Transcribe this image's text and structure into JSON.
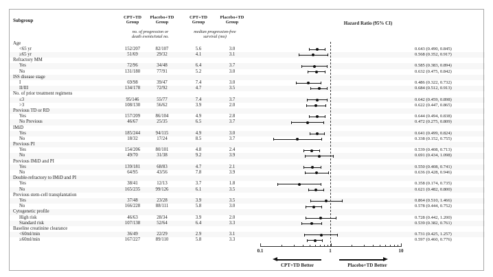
{
  "header": {
    "subgroup": "Subgroup",
    "columns": [
      {
        "line1": "CPT+TD",
        "line2": "Group"
      },
      {
        "line1": "Placebo+TD",
        "line2": "Group"
      },
      {
        "line1": "CPT+TD",
        "line2": "Group"
      },
      {
        "line1": "Placebo+TD",
        "line2": "Group"
      }
    ],
    "subheaders": [
      {
        "line1": "no. of progression or",
        "line2": "death events/total no."
      },
      {
        "line1": "median progression-free",
        "line2": "survival (mo)"
      }
    ],
    "hazard_ratio": "Hazard Ratio (95% CI)"
  },
  "axis": {
    "ticks": [
      "0.1",
      "1",
      "10"
    ],
    "tick_values": [
      0.1,
      1,
      10
    ],
    "minor_tick_values": [
      0.2,
      0.3,
      0.4,
      0.5,
      0.6,
      0.7,
      0.8,
      0.9,
      2,
      3,
      4,
      5,
      6,
      7,
      8,
      9
    ],
    "reference_value": 1,
    "left_label": "CPT+TD Better",
    "right_label": "Placebo+TD Better"
  },
  "rows": [
    {
      "label": "Age",
      "indent": false
    },
    {
      "label": "<65 yr",
      "indent": true,
      "events_cpt": "152/207",
      "events_placebo": "82/107",
      "pfs_cpt": "5.6",
      "pfs_placebo": "3.0",
      "hr": 0.643,
      "ci_low": 0.49,
      "ci_high": 0.845,
      "hr_text": "0.643 (0.490, 0.845)"
    },
    {
      "label": "≥65 yr",
      "indent": true,
      "events_cpt": "51/69",
      "events_placebo": "29/32",
      "pfs_cpt": "4.1",
      "pfs_placebo": "3.1",
      "hr": 0.568,
      "ci_low": 0.352,
      "ci_high": 0.917,
      "hr_text": "0.568 (0.352, 0.917)"
    },
    {
      "label": "Refractory MM",
      "indent": false
    },
    {
      "label": "Yes",
      "indent": true,
      "events_cpt": "72/96",
      "events_placebo": "34/48",
      "pfs_cpt": "6.4",
      "pfs_placebo": "3.7",
      "hr": 0.585,
      "ci_low": 0.383,
      "ci_high": 0.894,
      "hr_text": "0.585 (0.383, 0.894)"
    },
    {
      "label": "No",
      "indent": true,
      "events_cpt": "131/180",
      "events_placebo": "77/91",
      "pfs_cpt": "5.2",
      "pfs_placebo": "3.0",
      "hr": 0.632,
      "ci_low": 0.475,
      "ci_high": 0.842,
      "hr_text": "0.632 (0.475, 0.842)"
    },
    {
      "label": "ISS disease stage",
      "indent": false
    },
    {
      "label": "I",
      "indent": true,
      "events_cpt": "69/98",
      "events_placebo": "39/47",
      "pfs_cpt": "7.4",
      "pfs_placebo": "3.0",
      "hr": 0.486,
      "ci_low": 0.322,
      "ci_high": 0.732,
      "hr_text": "0.486 (0.322, 0.732)"
    },
    {
      "label": "II/III",
      "indent": true,
      "events_cpt": "134/178",
      "events_placebo": "72/92",
      "pfs_cpt": "4.7",
      "pfs_placebo": "3.5",
      "hr": 0.684,
      "ci_low": 0.512,
      "ci_high": 0.913,
      "hr_text": "0.684 (0.512, 0.913)"
    },
    {
      "label": "No. of prior treatment regimens",
      "indent": false
    },
    {
      "label": "≤3",
      "indent": true,
      "events_cpt": "95/146",
      "events_placebo": "55/77",
      "pfs_cpt": "7.4",
      "pfs_placebo": "3.7",
      "hr": 0.642,
      "ci_low": 0.459,
      "ci_high": 0.898,
      "hr_text": "0.642 (0.459, 0.898)"
    },
    {
      "label": ">3",
      "indent": true,
      "events_cpt": "108/130",
      "events_placebo": "56/62",
      "pfs_cpt": "3.9",
      "pfs_placebo": "2.0",
      "hr": 0.622,
      "ci_low": 0.447,
      "ci_high": 0.865,
      "hr_text": "0.622 (0.447, 0.865)"
    },
    {
      "label": "Previous TD or RD",
      "indent": false
    },
    {
      "label": "Yes",
      "indent": true,
      "events_cpt": "157/209",
      "events_placebo": "86/104",
      "pfs_cpt": "4.9",
      "pfs_placebo": "2.8",
      "hr": 0.644,
      "ci_low": 0.494,
      "ci_high": 0.838,
      "hr_text": "0.644 (0.494, 0.838)"
    },
    {
      "label": "No Previous",
      "indent": true,
      "events_cpt": "46/67",
      "events_placebo": "25/35",
      "pfs_cpt": "6.5",
      "pfs_placebo": "3.7",
      "hr": 0.472,
      "ci_low": 0.275,
      "ci_high": 0.809,
      "hr_text": "0.472 (0.275, 0.809)"
    },
    {
      "label": "IMiD",
      "indent": false
    },
    {
      "label": "Yes",
      "indent": true,
      "events_cpt": "185/244",
      "events_placebo": "94/115",
      "pfs_cpt": "4.9",
      "pfs_placebo": "3.0",
      "hr": 0.641,
      "ci_low": 0.499,
      "ci_high": 0.824,
      "hr_text": "0.641 (0.499, 0.824)"
    },
    {
      "label": "No",
      "indent": true,
      "events_cpt": "18/32",
      "events_placebo": "17/24",
      "pfs_cpt": "8.5",
      "pfs_placebo": "3.7",
      "hr": 0.338,
      "ci_low": 0.152,
      "ci_high": 0.755,
      "hr_text": "0.338 (0.152, 0.755)"
    },
    {
      "label": "Previous PI",
      "indent": false
    },
    {
      "label": "Yes",
      "indent": true,
      "events_cpt": "154/206",
      "events_placebo": "80/101",
      "pfs_cpt": "4.8",
      "pfs_placebo": "2.4",
      "hr": 0.539,
      "ci_low": 0.408,
      "ci_high": 0.713,
      "hr_text": "0.539 (0.408, 0.713)"
    },
    {
      "label": "No",
      "indent": true,
      "events_cpt": "49/70",
      "events_placebo": "31/38",
      "pfs_cpt": "9.2",
      "pfs_placebo": "3.9",
      "hr": 0.691,
      "ci_low": 0.434,
      "ci_high": 1.098,
      "hr_text": "0.691 (0.434, 1.098)"
    },
    {
      "label": "Previous IMiD and PI",
      "indent": false
    },
    {
      "label": "Yes",
      "indent": true,
      "events_cpt": "139/181",
      "events_placebo": "68/83",
      "pfs_cpt": "4.7",
      "pfs_placebo": "2.1",
      "hr": 0.55,
      "ci_low": 0.408,
      "ci_high": 0.741,
      "hr_text": "0.550 (0.408, 0.741)"
    },
    {
      "label": "No",
      "indent": true,
      "events_cpt": "64/95",
      "events_placebo": "43/56",
      "pfs_cpt": "7.8",
      "pfs_placebo": "3.9",
      "hr": 0.636,
      "ci_low": 0.428,
      "ci_high": 0.946,
      "hr_text": "0.636 (0.428, 0.946)"
    },
    {
      "label": "Double-refractory to IMiD and PI",
      "indent": false
    },
    {
      "label": "Yes",
      "indent": true,
      "events_cpt": "38/41",
      "events_placebo": "12/13",
      "pfs_cpt": "3.7",
      "pfs_placebo": "1.8",
      "hr": 0.358,
      "ci_low": 0.174,
      "ci_high": 0.735,
      "hr_text": "0.358 (0.174, 0.735)"
    },
    {
      "label": "No",
      "indent": true,
      "events_cpt": "165/235",
      "events_placebo": "99/126",
      "pfs_cpt": "6.1",
      "pfs_placebo": "3.5",
      "hr": 0.621,
      "ci_low": 0.482,
      "ci_high": 0.8,
      "hr_text": "0.621 (0.482, 0.800)"
    },
    {
      "label": "Previous stem-cell transplantation",
      "indent": false
    },
    {
      "label": "Yes",
      "indent": true,
      "events_cpt": "37/48",
      "events_placebo": "23/28",
      "pfs_cpt": "3.9",
      "pfs_placebo": "3.5",
      "hr": 0.864,
      "ci_low": 0.51,
      "ci_high": 1.466,
      "hr_text": "0.864 (0.510, 1.466)"
    },
    {
      "label": "No",
      "indent": true,
      "events_cpt": "166/228",
      "events_placebo": "88/111",
      "pfs_cpt": "5.8",
      "pfs_placebo": "3.0",
      "hr": 0.578,
      "ci_low": 0.444,
      "ci_high": 0.752,
      "hr_text": "0.578 (0.444, 0.752)"
    },
    {
      "label": "Cytogenetic profile",
      "indent": false
    },
    {
      "label": "High risk",
      "indent": true,
      "events_cpt": "46/63",
      "events_placebo": "28/34",
      "pfs_cpt": "3.9",
      "pfs_placebo": "2.0",
      "hr": 0.728,
      "ci_low": 0.442,
      "ci_high": 1.2,
      "hr_text": "0.728 (0.442, 1.200)"
    },
    {
      "label": "Standard risk",
      "indent": true,
      "events_cpt": "107/138",
      "events_placebo": "52/64",
      "pfs_cpt": "6.4",
      "pfs_placebo": "3.3",
      "hr": 0.539,
      "ci_low": 0.382,
      "ci_high": 0.761,
      "hr_text": "0.539 (0.382, 0.761)"
    },
    {
      "label": "Baseline creatinine clearance",
      "indent": false
    },
    {
      "label": "<60ml/min",
      "indent": true,
      "events_cpt": "36/49",
      "events_placebo": "22/29",
      "pfs_cpt": "2.9",
      "pfs_placebo": "3.1",
      "hr": 0.731,
      "ci_low": 0.425,
      "ci_high": 1.257,
      "hr_text": "0.731 (0.425, 1.257)"
    },
    {
      "label": "≥60ml/min",
      "indent": true,
      "events_cpt": "167/227",
      "events_placebo": "89/110",
      "pfs_cpt": "5.8",
      "pfs_placebo": "3.3",
      "hr": 0.597,
      "ci_low": 0.46,
      "ci_high": 0.776,
      "hr_text": "0.597 (0.460, 0.776)"
    }
  ],
  "chart_data": {
    "type": "scatter",
    "variant": "forest-plot",
    "title": "Hazard Ratio (95% CI)",
    "xscale": "log",
    "xlim": [
      0.1,
      10
    ],
    "xticks": [
      0.1,
      1,
      10
    ],
    "reference_line": 1.0,
    "direction_labels": {
      "left": "CPT+TD Better",
      "right": "Placebo+TD Better"
    },
    "points": [
      {
        "subgroup": "Age: <65 yr",
        "hr": 0.643,
        "ci95": [
          0.49,
          0.845
        ]
      },
      {
        "subgroup": "Age: ≥65 yr",
        "hr": 0.568,
        "ci95": [
          0.352,
          0.917
        ]
      },
      {
        "subgroup": "Refractory MM: Yes",
        "hr": 0.585,
        "ci95": [
          0.383,
          0.894
        ]
      },
      {
        "subgroup": "Refractory MM: No",
        "hr": 0.632,
        "ci95": [
          0.475,
          0.842
        ]
      },
      {
        "subgroup": "ISS disease stage: I",
        "hr": 0.486,
        "ci95": [
          0.322,
          0.732
        ]
      },
      {
        "subgroup": "ISS disease stage: II/III",
        "hr": 0.684,
        "ci95": [
          0.512,
          0.913
        ]
      },
      {
        "subgroup": "Prior treatment regimens: ≤3",
        "hr": 0.642,
        "ci95": [
          0.459,
          0.898
        ]
      },
      {
        "subgroup": "Prior treatment regimens: >3",
        "hr": 0.622,
        "ci95": [
          0.447,
          0.865
        ]
      },
      {
        "subgroup": "Previous TD or RD: Yes",
        "hr": 0.644,
        "ci95": [
          0.494,
          0.838
        ]
      },
      {
        "subgroup": "Previous TD or RD: No Previous",
        "hr": 0.472,
        "ci95": [
          0.275,
          0.809
        ]
      },
      {
        "subgroup": "IMiD: Yes",
        "hr": 0.641,
        "ci95": [
          0.499,
          0.824
        ]
      },
      {
        "subgroup": "IMiD: No",
        "hr": 0.338,
        "ci95": [
          0.152,
          0.755
        ]
      },
      {
        "subgroup": "Previous PI: Yes",
        "hr": 0.539,
        "ci95": [
          0.408,
          0.713
        ]
      },
      {
        "subgroup": "Previous PI: No",
        "hr": 0.691,
        "ci95": [
          0.434,
          1.098
        ]
      },
      {
        "subgroup": "Previous IMiD and PI: Yes",
        "hr": 0.55,
        "ci95": [
          0.408,
          0.741
        ]
      },
      {
        "subgroup": "Previous IMiD and PI: No",
        "hr": 0.636,
        "ci95": [
          0.428,
          0.946
        ]
      },
      {
        "subgroup": "Double-refractory to IMiD and PI: Yes",
        "hr": 0.358,
        "ci95": [
          0.174,
          0.735
        ]
      },
      {
        "subgroup": "Double-refractory to IMiD and PI: No",
        "hr": 0.621,
        "ci95": [
          0.482,
          0.8
        ]
      },
      {
        "subgroup": "Previous stem-cell transplantation: Yes",
        "hr": 0.864,
        "ci95": [
          0.51,
          1.466
        ]
      },
      {
        "subgroup": "Previous stem-cell transplantation: No",
        "hr": 0.578,
        "ci95": [
          0.444,
          0.752
        ]
      },
      {
        "subgroup": "Cytogenetic profile: High risk",
        "hr": 0.728,
        "ci95": [
          0.442,
          1.2
        ]
      },
      {
        "subgroup": "Cytogenetic profile: Standard risk",
        "hr": 0.539,
        "ci95": [
          0.382,
          0.761
        ]
      },
      {
        "subgroup": "Baseline creatinine clearance: <60ml/min",
        "hr": 0.731,
        "ci95": [
          0.425,
          1.257
        ]
      },
      {
        "subgroup": "Baseline creatinine clearance: ≥60ml/min",
        "hr": 0.597,
        "ci95": [
          0.46,
          0.776
        ]
      }
    ]
  }
}
